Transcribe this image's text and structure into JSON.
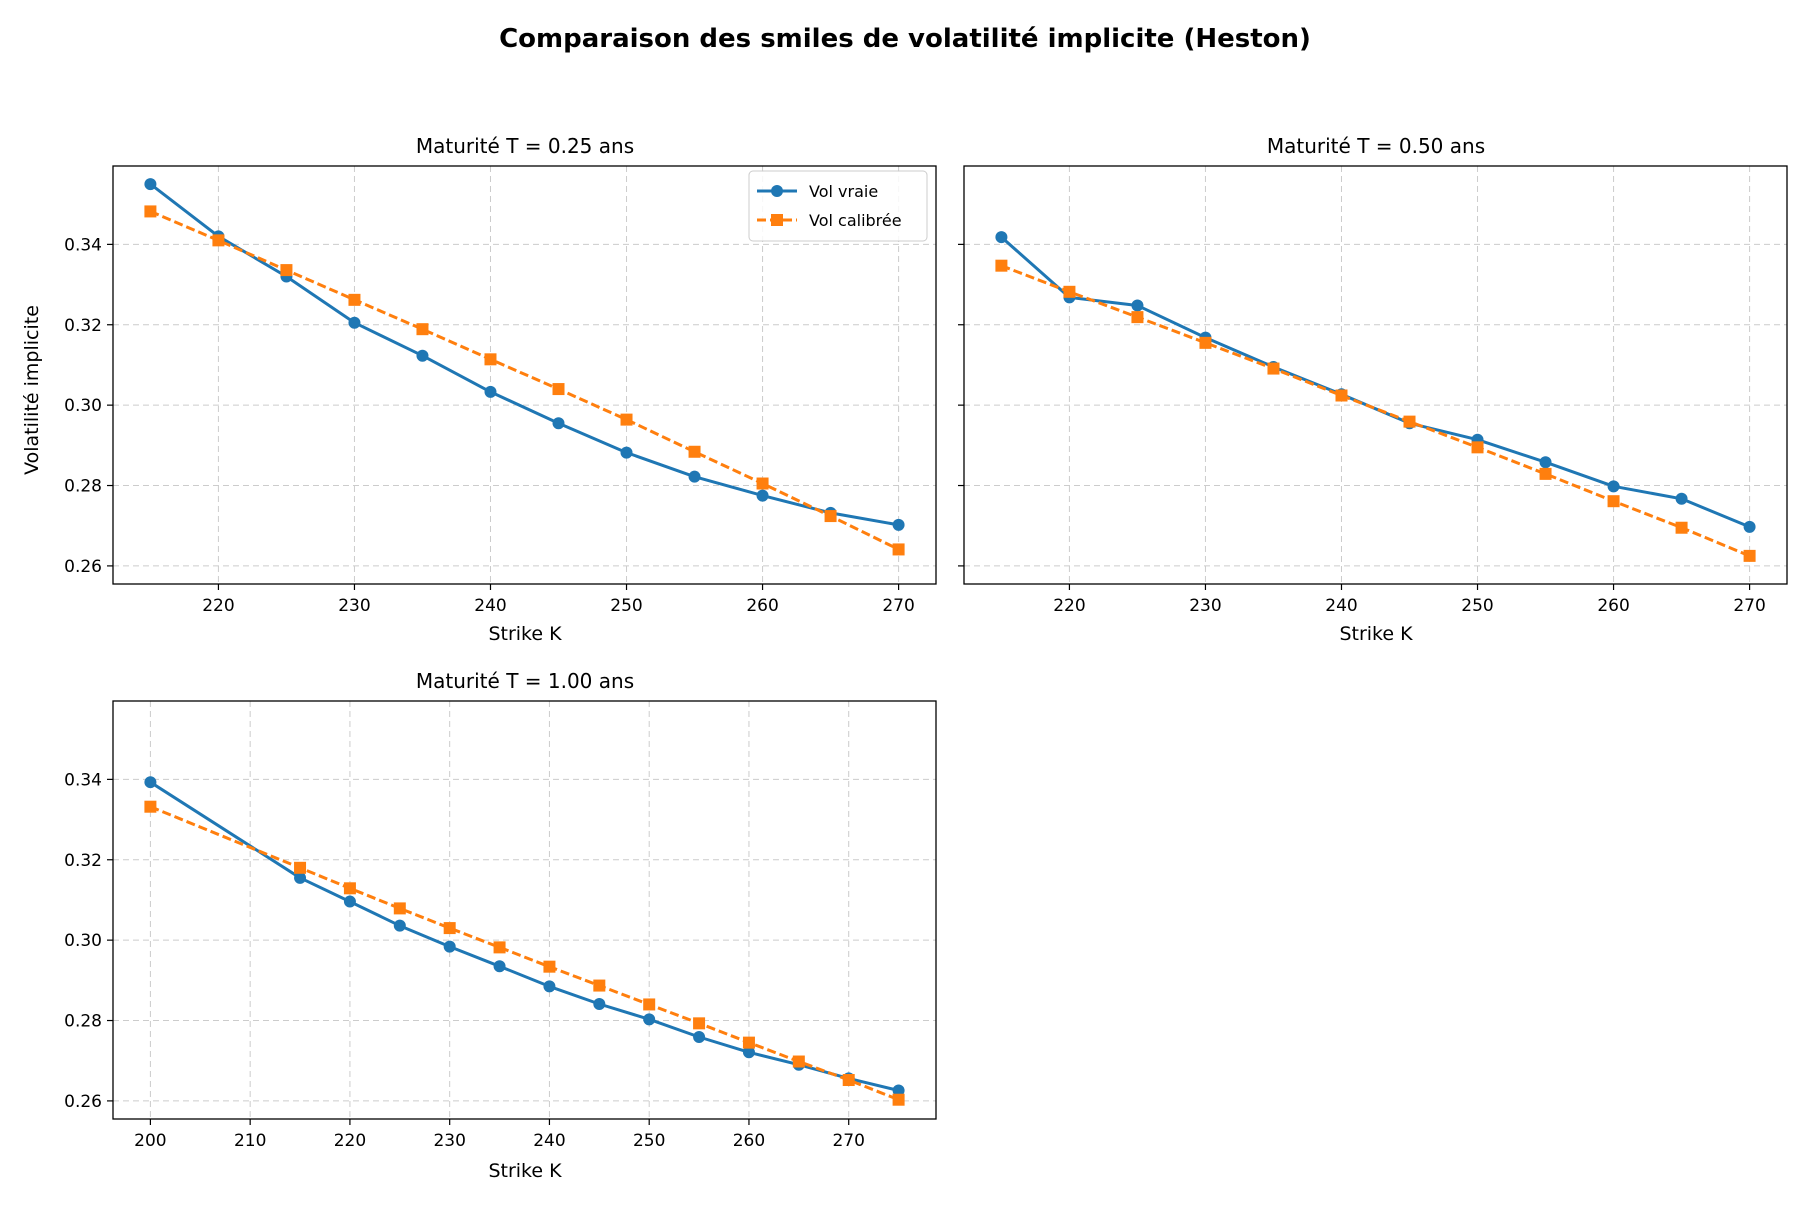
{
  "figure": {
    "title": "Comparaison des smiles de volatilité implicite (Heston)"
  },
  "colors": {
    "vraie": "#1f77b4",
    "calibree": "#ff7f0e",
    "grid": "#cccccc"
  },
  "legend": {
    "placement": "upper right",
    "items": [
      "Vol vraie",
      "Vol calibrée"
    ]
  },
  "chart_data": [
    {
      "type": "line",
      "title": "Maturité T = 0.25 ans",
      "xlabel": "Strike K",
      "ylabel": "Volatilité implicite",
      "xlim": [
        212.25,
        272.75
      ],
      "ylim": [
        0.2555,
        0.3595
      ],
      "xticks": [
        220,
        230,
        240,
        250,
        260,
        270
      ],
      "yticks": [
        0.26,
        0.28,
        0.3,
        0.32,
        0.34
      ],
      "ytick_labels": [
        "0.26",
        "0.28",
        "0.30",
        "0.32",
        "0.34"
      ],
      "grid": true,
      "legend": true,
      "x": [
        215,
        220,
        225,
        230,
        235,
        240,
        245,
        250,
        255,
        260,
        265,
        270
      ],
      "series": [
        {
          "name": "Vol vraie",
          "style": "solid",
          "marker": "circle",
          "values": [
            0.355,
            0.342,
            0.332,
            0.3205,
            0.3123,
            0.3033,
            0.2955,
            0.2882,
            0.2822,
            0.2775,
            0.2732,
            0.2702
          ]
        },
        {
          "name": "Vol calibrée",
          "style": "dashed",
          "marker": "square",
          "values": [
            0.3482,
            0.341,
            0.3336,
            0.3262,
            0.3189,
            0.3114,
            0.304,
            0.2964,
            0.2884,
            0.2805,
            0.2724,
            0.2641
          ]
        }
      ]
    },
    {
      "type": "line",
      "title": "Maturité T = 0.50 ans",
      "xlabel": "Strike K",
      "ylabel": "",
      "xlim": [
        212.25,
        272.75
      ],
      "ylim": [
        0.2555,
        0.3595
      ],
      "xticks": [
        220,
        230,
        240,
        250,
        260,
        270
      ],
      "yticks": [
        0.26,
        0.28,
        0.3,
        0.32,
        0.34
      ],
      "ytick_labels": [],
      "grid": true,
      "legend": false,
      "x": [
        215,
        220,
        225,
        230,
        235,
        240,
        245,
        250,
        255,
        260,
        265,
        270
      ],
      "series": [
        {
          "name": "Vol vraie",
          "style": "solid",
          "marker": "circle",
          "values": [
            0.3418,
            0.3268,
            0.3248,
            0.3168,
            0.3095,
            0.3027,
            0.2955,
            0.2914,
            0.2858,
            0.2798,
            0.2767,
            0.2697
          ]
        },
        {
          "name": "Vol calibrée",
          "style": "dashed",
          "marker": "square",
          "values": [
            0.3347,
            0.3282,
            0.3219,
            0.3155,
            0.3091,
            0.3024,
            0.2959,
            0.2895,
            0.2829,
            0.2761,
            0.2695,
            0.2625
          ]
        }
      ]
    },
    {
      "type": "line",
      "title": "Maturité T = 1.00 ans",
      "xlabel": "Strike K",
      "ylabel": "",
      "xlim": [
        196.25,
        278.75
      ],
      "ylim": [
        0.2555,
        0.3595
      ],
      "xticks": [
        200,
        210,
        220,
        230,
        240,
        250,
        260,
        270
      ],
      "yticks": [
        0.26,
        0.28,
        0.3,
        0.32,
        0.34
      ],
      "ytick_labels": [
        "0.26",
        "0.28",
        "0.30",
        "0.32",
        "0.34"
      ],
      "grid": true,
      "legend": false,
      "x": [
        200,
        215,
        220,
        225,
        230,
        235,
        240,
        245,
        250,
        255,
        260,
        265,
        270,
        275
      ],
      "series": [
        {
          "name": "Vol vraie",
          "style": "solid",
          "marker": "circle",
          "values": [
            0.3393,
            0.3155,
            0.3096,
            0.3036,
            0.2984,
            0.2935,
            0.2885,
            0.2841,
            0.2803,
            0.2759,
            0.2721,
            0.269,
            0.2656,
            0.2626
          ]
        },
        {
          "name": "Vol calibrée",
          "style": "dashed",
          "marker": "square",
          "values": [
            0.3332,
            0.318,
            0.3129,
            0.3079,
            0.303,
            0.2982,
            0.2934,
            0.2887,
            0.284,
            0.2793,
            0.2745,
            0.2698,
            0.2652,
            0.2603
          ]
        }
      ]
    }
  ]
}
